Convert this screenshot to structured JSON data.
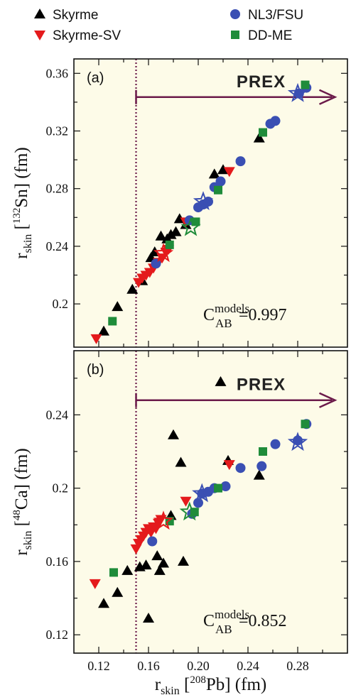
{
  "colors": {
    "skyrme": "#000000",
    "skyrme_sv": "#e41a1c",
    "nl3_fsu": "#3a4fb3",
    "dd_me": "#1f8c3a",
    "prex_arrow": "#6b1a4a",
    "panel_background": "#fdfbe8"
  },
  "legend": [
    {
      "label": "Skyrme",
      "marker": "triangle-up",
      "color": "#000000"
    },
    {
      "label": "NL3/FSU",
      "marker": "circle",
      "color": "#3a4fb3"
    },
    {
      "label": "Skyrme-SV",
      "marker": "triangle-down",
      "color": "#e41a1c"
    },
    {
      "label": "DD-ME",
      "marker": "square",
      "color": "#1f8c3a"
    }
  ],
  "chart_data": [
    {
      "type": "scatter",
      "panel_label": "(a)",
      "ylabel": {
        "prefix": "r",
        "sub": "skin",
        "bracket_open": " [",
        "sup": "132",
        "element": "Sn",
        "bracket_close": "] (fm)"
      },
      "xlim": [
        0.1,
        0.32
      ],
      "ylim": [
        0.17,
        0.37
      ],
      "xticks": [
        0.12,
        0.16,
        0.2,
        0.24,
        0.28
      ],
      "xtick_labels": [
        "0.12",
        "0.16",
        "0.20",
        "0.24",
        "0.28"
      ],
      "yticks": [
        0.2,
        0.24,
        0.28,
        0.32,
        0.36
      ],
      "ytick_labels": [
        "0.2",
        "0.24",
        "0.28",
        "0.32",
        "0.36"
      ],
      "annotation": {
        "label": "PREX",
        "x_start": 0.15,
        "x_end": 0.31,
        "y": 0.3435
      },
      "constraint_line_x": 0.15,
      "correlation": {
        "C": "C",
        "sup": "models",
        "sub": "AB",
        "value": "=0.997"
      },
      "series": [
        {
          "name": "Skyrme",
          "marker": "triangle-up",
          "x": [
            0.124,
            0.135,
            0.147,
            0.155,
            0.162,
            0.165,
            0.17,
            0.175,
            0.178,
            0.182,
            0.185,
            0.19,
            0.213,
            0.22,
            0.249
          ],
          "y": [
            0.181,
            0.198,
            0.21,
            0.216,
            0.232,
            0.236,
            0.247,
            0.245,
            0.248,
            0.25,
            0.259,
            0.255,
            0.29,
            0.293,
            0.315
          ]
        },
        {
          "name": "Skyrme-SV",
          "marker": "triangle-down",
          "x": [
            0.118,
            0.152,
            0.155,
            0.158,
            0.161,
            0.164,
            0.168,
            0.171,
            0.174,
            0.176,
            0.19,
            0.225
          ],
          "y": [
            0.176,
            0.215,
            0.218,
            0.22,
            0.222,
            0.225,
            0.229,
            0.232,
            0.236,
            0.238,
            0.257,
            0.292
          ]
        },
        {
          "name": "NL3/FSU",
          "marker": "circle",
          "x": [
            0.166,
            0.193,
            0.2,
            0.204,
            0.208,
            0.213,
            0.218,
            0.234,
            0.258,
            0.262,
            0.281,
            0.287
          ],
          "y": [
            0.228,
            0.258,
            0.267,
            0.269,
            0.271,
            0.281,
            0.285,
            0.299,
            0.325,
            0.327,
            0.346,
            0.35
          ]
        },
        {
          "name": "DD-ME",
          "marker": "square",
          "x": [
            0.131,
            0.177,
            0.198,
            0.216,
            0.252,
            0.286
          ],
          "y": [
            0.188,
            0.241,
            0.257,
            0.279,
            0.319,
            0.352
          ]
        },
        {
          "name": "",
          "marker": "star-open",
          "color": "#3a4fb3",
          "x": [
            0.204,
            0.28
          ],
          "y": [
            0.271,
            0.346
          ]
        },
        {
          "name": "",
          "marker": "star-open",
          "color": "#1f8c3a",
          "x": [
            0.194
          ],
          "y": [
            0.253
          ]
        },
        {
          "name": "",
          "marker": "star-open",
          "color": "#e41a1c",
          "x": [
            0.172
          ],
          "y": [
            0.235
          ]
        }
      ]
    },
    {
      "type": "scatter",
      "panel_label": "(b)",
      "ylabel": {
        "prefix": "r",
        "sub": "skin",
        "bracket_open": " [",
        "sup": "48",
        "element": "Ca",
        "bracket_close": "] (fm)"
      },
      "xlabel": {
        "prefix": "r",
        "sub": "skin",
        "bracket_open": " [",
        "sup": "208",
        "element": "Pb",
        "bracket_close": "] (fm)"
      },
      "xlim": [
        0.1,
        0.32
      ],
      "ylim": [
        0.11,
        0.275
      ],
      "xticks": [
        0.12,
        0.16,
        0.2,
        0.24,
        0.28
      ],
      "xtick_labels": [
        "0.12",
        "0.16",
        "0.20",
        "0.24",
        "0.28"
      ],
      "yticks": [
        0.12,
        0.16,
        0.2,
        0.24
      ],
      "ytick_labels": [
        "0.12",
        "0.16",
        "0.2",
        "0.24"
      ],
      "annotation": {
        "label": "PREX",
        "x_start": 0.15,
        "x_end": 0.31,
        "y": 0.248
      },
      "constraint_line_x": 0.15,
      "correlation": {
        "C": "C",
        "sup": "models",
        "sub": "AB",
        "value": "=0.852"
      },
      "series": [
        {
          "name": "Skyrme",
          "marker": "triangle-up",
          "x": [
            0.124,
            0.135,
            0.143,
            0.153,
            0.158,
            0.16,
            0.167,
            0.169,
            0.172,
            0.178,
            0.18,
            0.186,
            0.188,
            0.218,
            0.224,
            0.249
          ],
          "y": [
            0.137,
            0.143,
            0.155,
            0.157,
            0.158,
            0.129,
            0.163,
            0.155,
            0.159,
            0.185,
            0.229,
            0.214,
            0.16,
            0.258,
            0.215,
            0.207
          ]
        },
        {
          "name": "Skyrme-SV",
          "marker": "triangle-down",
          "x": [
            0.117,
            0.15,
            0.152,
            0.154,
            0.156,
            0.158,
            0.16,
            0.162,
            0.164,
            0.166,
            0.168,
            0.17,
            0.19,
            0.225
          ],
          "y": [
            0.148,
            0.167,
            0.17,
            0.172,
            0.174,
            0.176,
            0.178,
            0.176,
            0.179,
            0.178,
            0.181,
            0.183,
            0.193,
            0.213
          ]
        },
        {
          "name": "NL3/FSU",
          "marker": "circle",
          "x": [
            0.163,
            0.195,
            0.2,
            0.203,
            0.208,
            0.213,
            0.222,
            0.234,
            0.251,
            0.262,
            0.28,
            0.287
          ],
          "y": [
            0.171,
            0.186,
            0.192,
            0.197,
            0.198,
            0.2,
            0.201,
            0.211,
            0.212,
            0.224,
            0.226,
            0.235
          ]
        },
        {
          "name": "DD-ME",
          "marker": "square",
          "x": [
            0.132,
            0.177,
            0.197,
            0.216,
            0.252,
            0.286
          ],
          "y": [
            0.154,
            0.182,
            0.187,
            0.2,
            0.22,
            0.235
          ]
        },
        {
          "name": "",
          "marker": "star-open",
          "color": "#3a4fb3",
          "x": [
            0.203,
            0.28
          ],
          "y": [
            0.197,
            0.225
          ]
        },
        {
          "name": "",
          "marker": "star-open",
          "color": "#1f8c3a",
          "x": [
            0.193
          ],
          "y": [
            0.187
          ]
        },
        {
          "name": "",
          "marker": "star-open",
          "color": "#e41a1c",
          "x": [
            0.172
          ],
          "y": [
            0.182
          ]
        }
      ]
    }
  ]
}
